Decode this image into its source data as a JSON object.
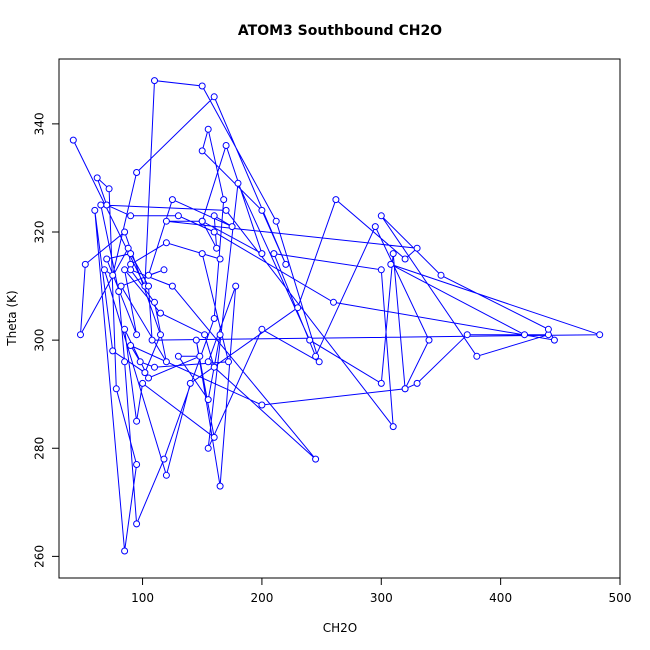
{
  "chart_data": {
    "type": "line",
    "title": "ATOM3 Southbound CH2O",
    "xlabel": "CH2O",
    "ylabel": "Theta (K)",
    "xlim": [
      30,
      500
    ],
    "ylim": [
      256,
      352
    ],
    "x_ticks": [
      100,
      200,
      300,
      400,
      500
    ],
    "y_ticks": [
      260,
      280,
      300,
      320,
      340
    ],
    "grid": false,
    "legend": "none",
    "marker": "open-circle",
    "color": "#0000ff",
    "series": [
      {
        "x": [
          42,
          102,
          110,
          150,
          212,
          248,
          200,
          155,
          180,
          240,
          300,
          310,
          320,
          330,
          372,
          440,
          380,
          300,
          350,
          440,
          445,
          260,
          160,
          130,
          90,
          70,
          62,
          72,
          78,
          95,
          85,
          60,
          75,
          102,
          115,
          85,
          52,
          48,
          88,
          90,
          120,
          165,
          150,
          172,
          110,
          98,
          90,
          200,
          320,
          340,
          295,
          245,
          210,
          300,
          310,
          170,
          65,
          80,
          85,
          95,
          118,
          160,
          168,
          155,
          150,
          200,
          220,
          160,
          95,
          75,
          68,
          120,
          140,
          230,
          262,
          320,
          330,
          120,
          150,
          170,
          200,
          150,
          162,
          160,
          175,
          125,
          105,
          118,
          82,
          120,
          110,
          90,
          125,
          245,
          155,
          178,
          165,
          145,
          160,
          100,
          95,
          85,
          105,
          148,
          130,
          155,
          165,
          160,
          152,
          115,
          85,
          95,
          70,
          90,
          105,
          108,
          483,
          308,
          420
        ],
        "y": [
          337,
          310,
          348,
          347,
          322,
          296,
          302,
          280,
          329,
          300,
          292,
          316,
          291,
          292,
          301,
          301,
          297,
          323,
          312,
          302,
          300,
          307,
          320,
          323,
          323,
          325,
          330,
          328,
          291,
          277,
          261,
          324,
          298,
          294,
          301,
          320,
          314,
          301,
          317,
          314,
          318,
          315,
          316,
          296,
          295,
          296,
          299,
          288,
          291,
          300,
          321,
          297,
          316,
          313,
          284,
          324,
          325,
          309,
          296,
          266,
          278,
          304,
          326,
          339,
          335,
          324,
          314,
          345,
          331,
          312,
          313,
          275,
          292,
          306,
          326,
          315,
          317,
          322,
          322,
          336,
          316,
          322,
          317,
          323,
          321,
          326,
          312,
          313,
          310,
          296,
          307,
          313,
          310,
          278,
          296,
          310,
          273,
          300,
          282,
          292,
          285,
          302,
          293,
          297,
          297,
          289,
          301,
          295,
          301,
          305,
          313,
          301,
          315,
          316,
          310,
          300,
          301,
          314,
          301
        ]
      }
    ]
  }
}
